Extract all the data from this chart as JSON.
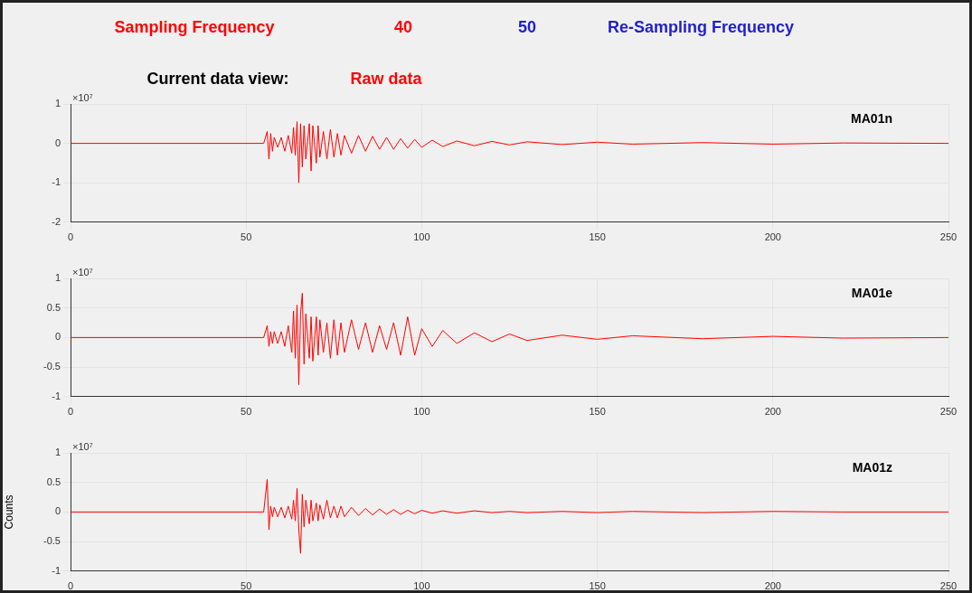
{
  "chart_data": [
    {
      "type": "other",
      "annotations": [
        "Sampling Frequency",
        "40",
        "50",
        "Re-Sampling Frequency",
        "Current data view:",
        "Raw data"
      ]
    },
    {
      "type": "line",
      "xlim": [
        0,
        250
      ],
      "xticks": [
        0,
        50,
        100,
        150,
        200,
        250
      ],
      "ylim": [
        -2,
        1
      ],
      "yticks": [
        -2,
        -1,
        0,
        1
      ],
      "grid": true,
      "annotations": [
        "×10⁷",
        "MA01n"
      ],
      "series": [
        {
          "color": "#ff0000",
          "x": [
            0,
            55,
            56,
            56.5,
            57,
            57.5,
            58,
            59,
            60,
            61,
            62,
            63,
            63.5,
            64,
            64.5,
            65,
            65.5,
            66,
            66.5,
            67,
            68,
            68.5,
            69,
            70,
            70.5,
            71,
            72,
            73,
            74,
            75,
            76,
            77,
            78,
            80,
            82,
            84,
            86,
            88,
            90,
            92,
            94,
            96,
            98,
            100,
            103,
            106,
            110,
            115,
            120,
            125,
            130,
            140,
            150,
            160,
            180,
            200,
            220,
            250
          ],
          "values": [
            0,
            0,
            0.3,
            -0.4,
            0.25,
            -0.2,
            0.15,
            -0.1,
            0.15,
            -0.2,
            0.2,
            -0.25,
            0.4,
            -0.3,
            0.55,
            -1.0,
            0.5,
            -0.6,
            0.45,
            -0.4,
            0.5,
            -0.7,
            0.45,
            -0.5,
            0.45,
            -0.35,
            0.3,
            -0.4,
            0.35,
            -0.35,
            0.25,
            -0.3,
            0.2,
            -0.25,
            0.2,
            -0.2,
            0.18,
            -0.15,
            0.15,
            -0.15,
            0.12,
            -0.12,
            0.1,
            -0.1,
            0.08,
            -0.08,
            0.06,
            -0.06,
            0.05,
            -0.04,
            0.04,
            -0.03,
            0.03,
            -0.02,
            0.02,
            -0.02,
            0.01,
            0
          ]
        }
      ]
    },
    {
      "type": "line",
      "xlim": [
        0,
        250
      ],
      "xticks": [
        0,
        50,
        100,
        150,
        200,
        250
      ],
      "ylim": [
        -1,
        1
      ],
      "yticks": [
        -1,
        -0.5,
        0,
        0.5,
        1
      ],
      "grid": true,
      "annotations": [
        "×10⁷",
        "MA01e"
      ],
      "series": [
        {
          "color": "#ff0000",
          "x": [
            0,
            55,
            56,
            56.5,
            57,
            57.5,
            58,
            59,
            60,
            61,
            62,
            63,
            63.5,
            64,
            64.5,
            65,
            65.5,
            66,
            66.5,
            67,
            68,
            68.5,
            69,
            70,
            70.5,
            71,
            72,
            73,
            74,
            75,
            76,
            77,
            78,
            80,
            82,
            84,
            86,
            88,
            90,
            92,
            94,
            96,
            98,
            100,
            103,
            106,
            110,
            115,
            120,
            125,
            130,
            140,
            150,
            160,
            180,
            200,
            220,
            250
          ],
          "values": [
            0,
            0,
            0.2,
            -0.15,
            0.1,
            -0.1,
            0.1,
            -0.1,
            0.1,
            -0.15,
            0.2,
            -0.25,
            0.45,
            -0.35,
            0.55,
            -0.8,
            0.4,
            0.75,
            -0.45,
            0.4,
            -0.35,
            0.35,
            -0.4,
            0.35,
            -0.3,
            0.3,
            -0.25,
            0.25,
            -0.35,
            0.3,
            -0.3,
            0.25,
            -0.25,
            0.3,
            -0.2,
            0.25,
            -0.25,
            0.2,
            -0.2,
            0.25,
            -0.3,
            0.35,
            -0.3,
            0.15,
            -0.15,
            0.12,
            -0.1,
            0.08,
            -0.07,
            0.06,
            -0.05,
            0.04,
            -0.03,
            0.03,
            -0.02,
            0.02,
            -0.01,
            0
          ]
        }
      ]
    },
    {
      "type": "line",
      "xlim": [
        0,
        250
      ],
      "xticks": [
        0,
        50,
        100,
        150,
        200,
        250
      ],
      "ylim": [
        -1,
        1
      ],
      "yticks": [
        -1,
        -0.5,
        0,
        0.5,
        1
      ],
      "grid": true,
      "ylabel": "Counts",
      "annotations": [
        "×10⁷",
        "MA01z"
      ],
      "series": [
        {
          "color": "#ff0000",
          "x": [
            0,
            55,
            56,
            56.5,
            57,
            57.5,
            58,
            59,
            60,
            61,
            62,
            63,
            63.5,
            64,
            64.5,
            65,
            65.5,
            66,
            66.5,
            67,
            68,
            68.5,
            69,
            70,
            70.5,
            71,
            72,
            73,
            74,
            75,
            76,
            77,
            78,
            80,
            82,
            84,
            86,
            88,
            90,
            92,
            94,
            96,
            98,
            100,
            103,
            106,
            110,
            115,
            120,
            125,
            130,
            140,
            150,
            160,
            180,
            200,
            220,
            250
          ],
          "values": [
            0,
            0,
            0.55,
            -0.3,
            0.1,
            -0.08,
            0.08,
            -0.08,
            0.08,
            -0.1,
            0.1,
            -0.12,
            0.2,
            -0.15,
            0.4,
            -0.3,
            -0.7,
            0.3,
            -0.25,
            0.2,
            -0.2,
            0.2,
            -0.15,
            0.15,
            -0.15,
            0.12,
            -0.12,
            0.2,
            -0.1,
            0.1,
            -0.1,
            0.1,
            -0.08,
            0.08,
            -0.06,
            0.06,
            -0.05,
            0.05,
            -0.04,
            0.04,
            -0.04,
            0.03,
            -0.03,
            0.03,
            -0.02,
            0.02,
            -0.02,
            0.02,
            -0.01,
            0.01,
            -0.01,
            0.01,
            -0.01,
            0.01,
            -0.01,
            0.01,
            0,
            0
          ]
        }
      ]
    }
  ]
}
